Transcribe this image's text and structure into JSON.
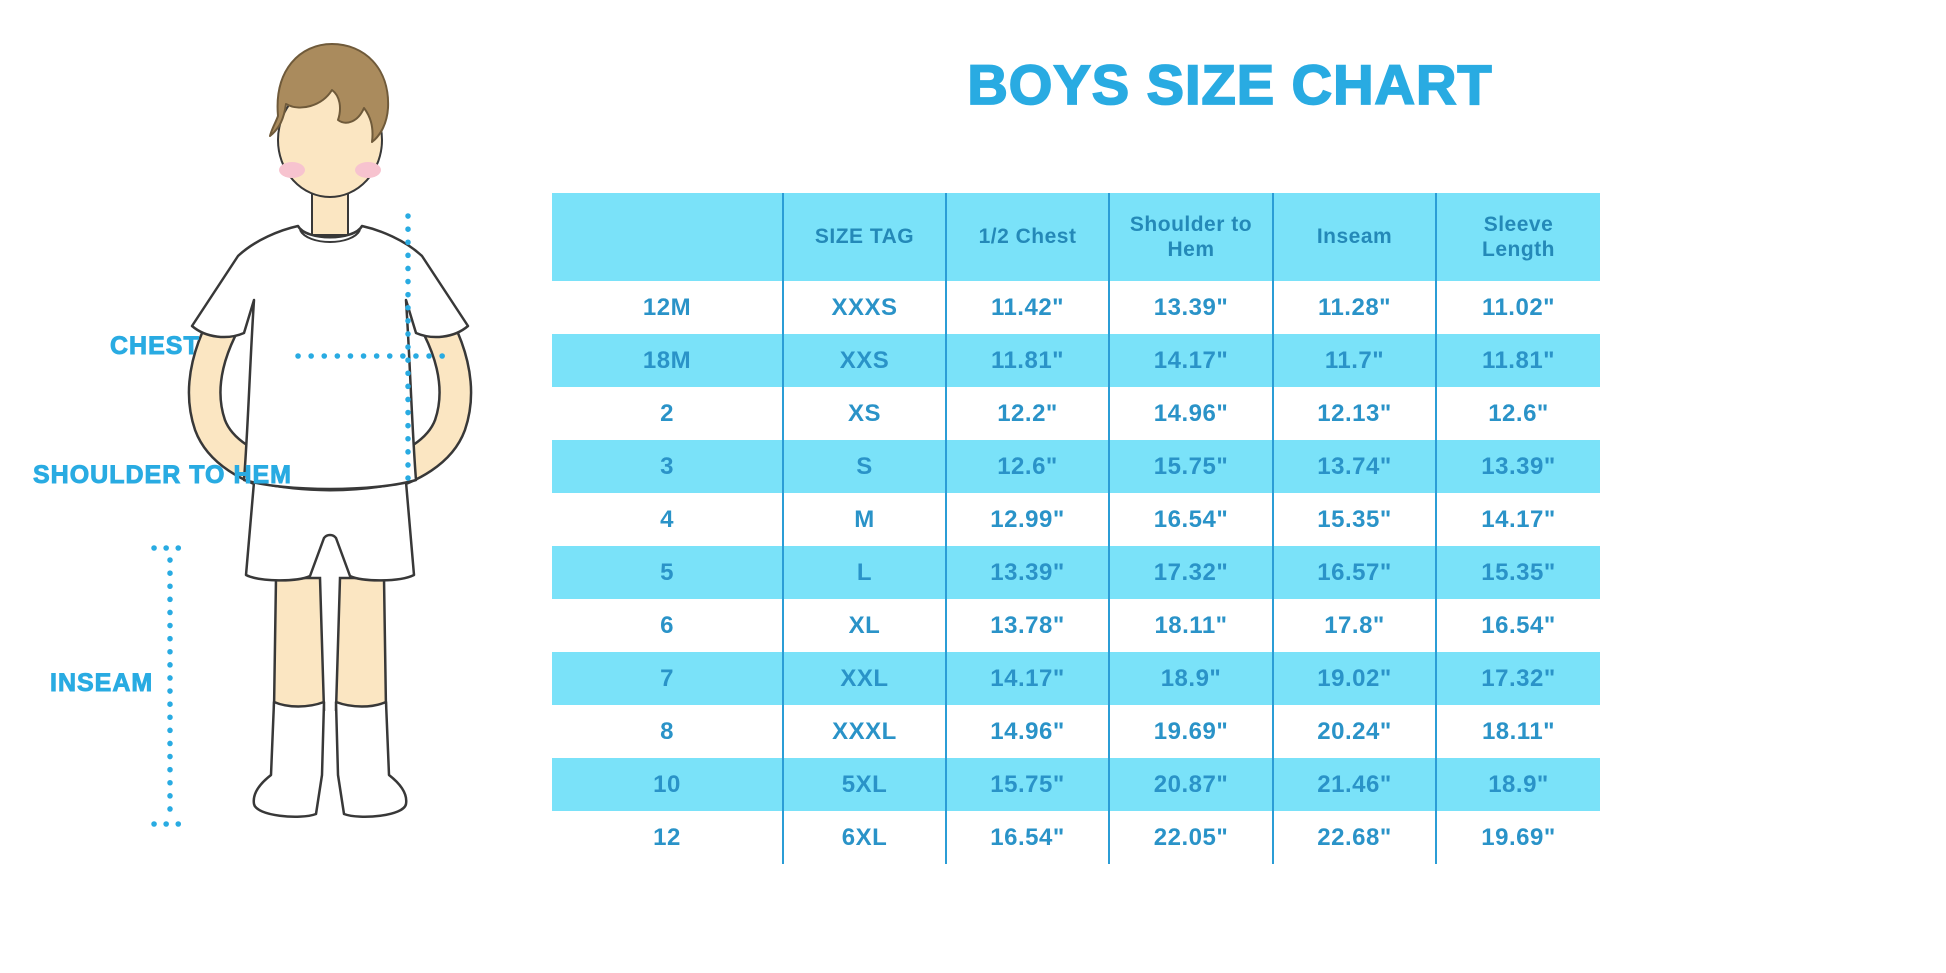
{
  "page": {
    "title": "BOYS SIZE CHART",
    "background": "#ffffff"
  },
  "colors": {
    "accent_blue": "#29abe2",
    "band_cyan": "#7ae2f9",
    "divider_blue": "#2b9dd6",
    "table_text": "#2a93c8",
    "skin": "#fbe6c2",
    "hair": "#aa8b5d",
    "cheek": "#f7c3cf",
    "outline": "#383838"
  },
  "figure_labels": {
    "chest": "CHEST",
    "shoulder_to_hem": "SHOULDER TO HEM",
    "inseam": "INSEAM"
  },
  "chart_data": {
    "type": "table",
    "title": "BOYS SIZE CHART",
    "units": "inches",
    "banded_rows": true,
    "band_color": "#7ae2f9",
    "columns": [
      "",
      "SIZE TAG",
      "1/2 Chest",
      "Shoulder to Hem",
      "Inseam",
      "Sleeve Length"
    ],
    "rows": [
      [
        "12M",
        "XXXS",
        "11.42\"",
        "13.39\"",
        "11.28\"",
        "11.02\""
      ],
      [
        "18M",
        "XXS",
        "11.81\"",
        "14.17\"",
        "11.7\"",
        "11.81\""
      ],
      [
        "2",
        "XS",
        "12.2\"",
        "14.96\"",
        "12.13\"",
        "12.6\""
      ],
      [
        "3",
        "S",
        "12.6\"",
        "15.75\"",
        "13.74\"",
        "13.39\""
      ],
      [
        "4",
        "M",
        "12.99\"",
        "16.54\"",
        "15.35\"",
        "14.17\""
      ],
      [
        "5",
        "L",
        "13.39\"",
        "17.32\"",
        "16.57\"",
        "15.35\""
      ],
      [
        "6",
        "XL",
        "13.78\"",
        "18.11\"",
        "17.8\"",
        "16.54\""
      ],
      [
        "7",
        "XXL",
        "14.17\"",
        "18.9\"",
        "19.02\"",
        "17.32\""
      ],
      [
        "8",
        "XXXL",
        "14.96\"",
        "19.69\"",
        "20.24\"",
        "18.11\""
      ],
      [
        "10",
        "5XL",
        "15.75\"",
        "20.87\"",
        "21.46\"",
        "18.9\""
      ],
      [
        "12",
        "6XL",
        "16.54\"",
        "22.05\"",
        "22.68\"",
        "19.69\""
      ]
    ]
  }
}
